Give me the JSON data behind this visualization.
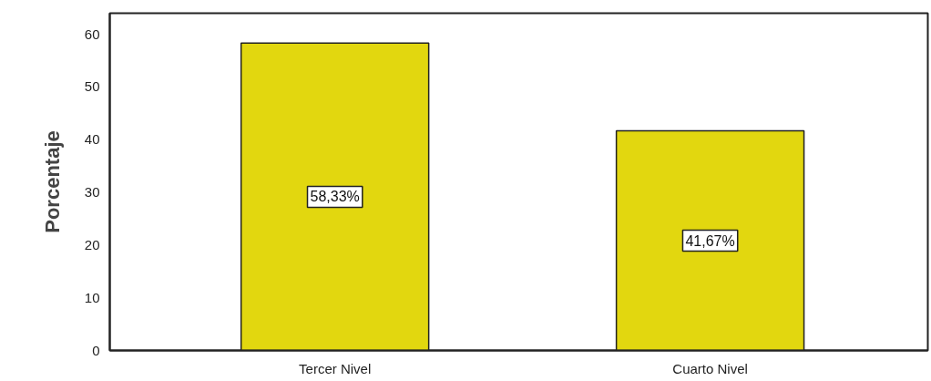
{
  "chart_data": {
    "type": "bar",
    "ylabel": "Porcentaje",
    "categories": [
      "Tercer Nivel",
      "Cuarto Nivel"
    ],
    "values": [
      58.33,
      41.67
    ],
    "color": "#e2d70f",
    "value_labels": [
      "58,33%",
      "41,67%"
    ],
    "ylim": [
      0,
      64
    ],
    "yticks": [
      0,
      10,
      20,
      30,
      40,
      50,
      60
    ],
    "grid": false
  }
}
